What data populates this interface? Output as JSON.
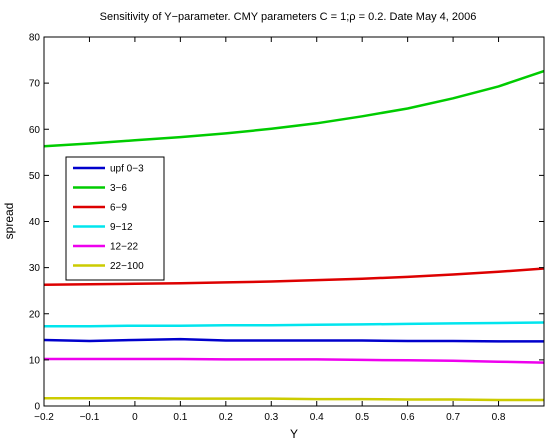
{
  "chart_data": {
    "type": "line",
    "title": "Sensitivity of Y−parameter. CMY parameters C = 1;ρ = 0.2. Date May 4, 2006",
    "xlabel": "Y",
    "ylabel": "spread",
    "xlim": [
      -0.2,
      0.9
    ],
    "ylim": [
      0,
      80
    ],
    "xticks": [
      -0.2,
      -0.1,
      0,
      0.1,
      0.2,
      0.3,
      0.4,
      0.5,
      0.6,
      0.7,
      0.8
    ],
    "xtick_labels": [
      "−0.2",
      "−0.1",
      "0",
      "0.1",
      "0.2",
      "0.3",
      "0.4",
      "0.5",
      "0.6",
      "0.7",
      "0.8"
    ],
    "yticks": [
      0,
      10,
      20,
      30,
      40,
      50,
      60,
      70,
      80
    ],
    "ytick_labels": [
      "0",
      "10",
      "20",
      "30",
      "40",
      "50",
      "60",
      "70",
      "80"
    ],
    "grid": false,
    "legend_position": "left",
    "x": [
      -0.2,
      -0.1,
      0,
      0.1,
      0.2,
      0.3,
      0.4,
      0.5,
      0.6,
      0.7,
      0.8,
      0.9
    ],
    "series": [
      {
        "name": "upf 0−3",
        "color": "#0000cc",
        "values": [
          14.3,
          14.1,
          14.3,
          14.5,
          14.2,
          14.2,
          14.2,
          14.2,
          14.1,
          14.1,
          14.0,
          14.0
        ]
      },
      {
        "name": "3−6",
        "color": "#00cc00",
        "values": [
          56.3,
          56.9,
          57.6,
          58.3,
          59.1,
          60.1,
          61.3,
          62.8,
          64.5,
          66.7,
          69.3,
          72.6
        ]
      },
      {
        "name": "6−9",
        "color": "#dd0000",
        "values": [
          26.3,
          26.4,
          26.5,
          26.6,
          26.8,
          27.0,
          27.3,
          27.6,
          28.0,
          28.5,
          29.1,
          29.8
        ]
      },
      {
        "name": "9−12",
        "color": "#00e5ee",
        "values": [
          17.3,
          17.3,
          17.4,
          17.4,
          17.5,
          17.5,
          17.6,
          17.7,
          17.8,
          17.9,
          18.0,
          18.1
        ]
      },
      {
        "name": "12−22",
        "color": "#ee00ee",
        "values": [
          10.2,
          10.2,
          10.2,
          10.2,
          10.1,
          10.1,
          10.1,
          10.0,
          9.9,
          9.8,
          9.6,
          9.4
        ]
      },
      {
        "name": "22−100",
        "color": "#cccc00",
        "values": [
          1.7,
          1.7,
          1.7,
          1.6,
          1.6,
          1.6,
          1.5,
          1.5,
          1.4,
          1.4,
          1.3,
          1.3
        ]
      }
    ]
  }
}
